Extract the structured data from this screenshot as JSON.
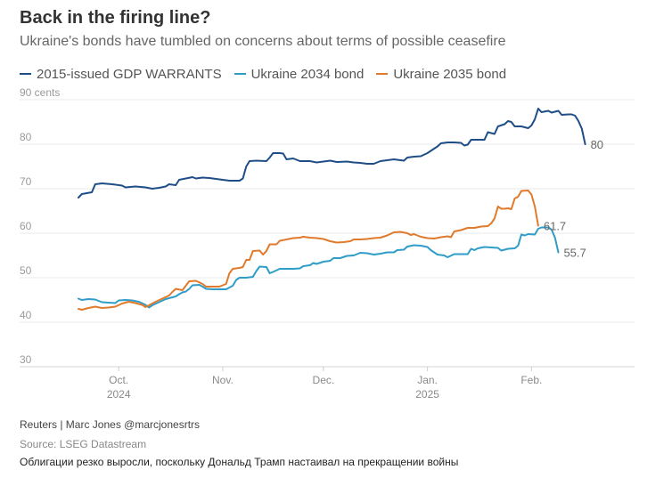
{
  "header": {
    "title": "Back in the firing line?",
    "subtitle": "Ukraine's bonds have tumbled on concerns about terms of possible ceasefire"
  },
  "footer": {
    "credit": "Reuters | Marc Jones @marcjonesrtrs",
    "source": "Source: LSEG Datastream",
    "caption": "Облигации резко выросли, поскольку Дональд Трамп настаивал на прекращении войны"
  },
  "chart_data": {
    "type": "line",
    "title": "Back in the firing line?",
    "subtitle": "Ukraine's bonds have tumbled on concerns about terms of possible ceasefire",
    "xlabel": "",
    "ylabel": "cents",
    "ylim": [
      30,
      90
    ],
    "xlim": [
      0,
      162
    ],
    "grid": true,
    "legend_position": "top",
    "y_ticks": [
      {
        "value": 90,
        "label": "90 cents"
      },
      {
        "value": 80,
        "label": "80"
      },
      {
        "value": 70,
        "label": "70"
      },
      {
        "value": 60,
        "label": "60"
      },
      {
        "value": 50,
        "label": "50"
      },
      {
        "value": 40,
        "label": "40"
      },
      {
        "value": 30,
        "label": "30"
      }
    ],
    "x_ticks": [
      {
        "value": 12,
        "label": "Oct.",
        "year": "2024"
      },
      {
        "value": 43,
        "label": "Nov.",
        "year": ""
      },
      {
        "value": 73,
        "label": "Dec.",
        "year": ""
      },
      {
        "value": 104,
        "label": "Jan.",
        "year": "2025"
      },
      {
        "value": 135,
        "label": "Feb.",
        "year": ""
      }
    ],
    "series": [
      {
        "name": "2015-issued GDP WARRANTS",
        "color": "#1f4e87",
        "end_label": "80",
        "points": [
          [
            0,
            68
          ],
          [
            1,
            68.8
          ],
          [
            4,
            69.2
          ],
          [
            5,
            71
          ],
          [
            7,
            71.2
          ],
          [
            10,
            71
          ],
          [
            13,
            70.7
          ],
          [
            14,
            70.3
          ],
          [
            17,
            70.5
          ],
          [
            20,
            70.3
          ],
          [
            22,
            70
          ],
          [
            24,
            70.2
          ],
          [
            26,
            70.5
          ],
          [
            27,
            71
          ],
          [
            29,
            70.8
          ],
          [
            30,
            72
          ],
          [
            32,
            72.3
          ],
          [
            34,
            72.6
          ],
          [
            35,
            72.3
          ],
          [
            37,
            72.5
          ],
          [
            39,
            72.4
          ],
          [
            41,
            72.2
          ],
          [
            43,
            72
          ],
          [
            45,
            71.8
          ],
          [
            48,
            71.8
          ],
          [
            49,
            72.3
          ],
          [
            50,
            75
          ],
          [
            51,
            76.2
          ],
          [
            53,
            76.3
          ],
          [
            56,
            76.2
          ],
          [
            57,
            77
          ],
          [
            58,
            78
          ],
          [
            60,
            78
          ],
          [
            61,
            77.9
          ],
          [
            62,
            76.6
          ],
          [
            64,
            76.8
          ],
          [
            66,
            76.2
          ],
          [
            69,
            76.2
          ],
          [
            71,
            75.9
          ],
          [
            73,
            76.1
          ],
          [
            75,
            76.3
          ],
          [
            77,
            76
          ],
          [
            80,
            76.1
          ],
          [
            82,
            75.9
          ],
          [
            84,
            75.8
          ],
          [
            86,
            75.6
          ],
          [
            88,
            75.6
          ],
          [
            90,
            76.2
          ],
          [
            92,
            76.4
          ],
          [
            94,
            76.6
          ],
          [
            97,
            76.3
          ],
          [
            98,
            77
          ],
          [
            100,
            77.2
          ],
          [
            102,
            77.3
          ],
          [
            104,
            78
          ],
          [
            106,
            79
          ],
          [
            107,
            79.5
          ],
          [
            108,
            80.2
          ],
          [
            110,
            80.4
          ],
          [
            112,
            80.4
          ],
          [
            114,
            80.3
          ],
          [
            115,
            79.7
          ],
          [
            116,
            79.9
          ],
          [
            117,
            81
          ],
          [
            119,
            81
          ],
          [
            121,
            81
          ],
          [
            122,
            82.7
          ],
          [
            123,
            82.5
          ],
          [
            124,
            82.3
          ],
          [
            125,
            84
          ],
          [
            127,
            84.5
          ],
          [
            128,
            85.2
          ],
          [
            129,
            85
          ],
          [
            130,
            84
          ],
          [
            132,
            84
          ],
          [
            133,
            83.8
          ],
          [
            134,
            83.6
          ],
          [
            135,
            84.2
          ],
          [
            136,
            85.6
          ],
          [
            137,
            88
          ],
          [
            138,
            87.2
          ],
          [
            140,
            87.5
          ],
          [
            141,
            87.1
          ],
          [
            142,
            87.3
          ],
          [
            143,
            87.5
          ],
          [
            144,
            86.6
          ],
          [
            146,
            86.7
          ],
          [
            147,
            86.7
          ],
          [
            148,
            86.4
          ],
          [
            149,
            85.2
          ],
          [
            150,
            83.5
          ],
          [
            151,
            80
          ]
        ]
      },
      {
        "name": "Ukraine 2034 bond",
        "color": "#2f9dc7",
        "end_label": "55.7",
        "points": [
          [
            0,
            45.3
          ],
          [
            1,
            45
          ],
          [
            3,
            45.2
          ],
          [
            5,
            45.1
          ],
          [
            7,
            44.5
          ],
          [
            9,
            44.4
          ],
          [
            11,
            44.3
          ],
          [
            12,
            44.9
          ],
          [
            14,
            45
          ],
          [
            16,
            44.9
          ],
          [
            18,
            44.6
          ],
          [
            20,
            43.9
          ],
          [
            21,
            43.3
          ],
          [
            22,
            43.8
          ],
          [
            24,
            44.5
          ],
          [
            26,
            45.2
          ],
          [
            27,
            45.4
          ],
          [
            29,
            45.8
          ],
          [
            30,
            46.3
          ],
          [
            31,
            46.7
          ],
          [
            32,
            46.9
          ],
          [
            33,
            47.5
          ],
          [
            34,
            48.3
          ],
          [
            36,
            48.4
          ],
          [
            37,
            48
          ],
          [
            38,
            47.5
          ],
          [
            40,
            47.4
          ],
          [
            42,
            47.4
          ],
          [
            44,
            47.4
          ],
          [
            46,
            48.2
          ],
          [
            47,
            49.5
          ],
          [
            48,
            50
          ],
          [
            50,
            50
          ],
          [
            52,
            50.2
          ],
          [
            53,
            51.5
          ],
          [
            54,
            52.5
          ],
          [
            56,
            52.4
          ],
          [
            57,
            51
          ],
          [
            58,
            51.3
          ],
          [
            60,
            52
          ],
          [
            62,
            52
          ],
          [
            64,
            52
          ],
          [
            66,
            52.1
          ],
          [
            67,
            52.6
          ],
          [
            69,
            52.8
          ],
          [
            70,
            53.3
          ],
          [
            71,
            53.1
          ],
          [
            73,
            53.6
          ],
          [
            75,
            53.8
          ],
          [
            76,
            54.4
          ],
          [
            78,
            54.4
          ],
          [
            80,
            54.9
          ],
          [
            82,
            55
          ],
          [
            84,
            55.6
          ],
          [
            86,
            55.5
          ],
          [
            88,
            55.2
          ],
          [
            90,
            55.4
          ],
          [
            92,
            55.7
          ],
          [
            94,
            55.7
          ],
          [
            95,
            56.2
          ],
          [
            97,
            56.3
          ],
          [
            98,
            57
          ],
          [
            100,
            57.3
          ],
          [
            102,
            57.2
          ],
          [
            104,
            56.9
          ],
          [
            105,
            56.2
          ],
          [
            106,
            55.7
          ],
          [
            107,
            55.2
          ],
          [
            109,
            55
          ],
          [
            110,
            54.6
          ],
          [
            112,
            55.3
          ],
          [
            114,
            55.3
          ],
          [
            116,
            55.3
          ],
          [
            117,
            56.5
          ],
          [
            118,
            56.2
          ],
          [
            119,
            56.6
          ],
          [
            121,
            56.9
          ],
          [
            123,
            56.8
          ],
          [
            125,
            56.7
          ],
          [
            126,
            56.1
          ],
          [
            128,
            56.5
          ],
          [
            130,
            56.6
          ],
          [
            131,
            57.2
          ],
          [
            132,
            59.7
          ],
          [
            133,
            59.5
          ],
          [
            134,
            59.8
          ],
          [
            136,
            59.7
          ],
          [
            137,
            61
          ],
          [
            138,
            61.3
          ],
          [
            140,
            61.3
          ],
          [
            141,
            60.8
          ],
          [
            142,
            59
          ],
          [
            143,
            55.7
          ]
        ]
      },
      {
        "name": "Ukraine 2035 bond",
        "color": "#e07a2c",
        "end_label": "61.7",
        "points": [
          [
            0,
            43
          ],
          [
            1,
            42.8
          ],
          [
            3,
            43.2
          ],
          [
            5,
            43.5
          ],
          [
            7,
            43.2
          ],
          [
            9,
            43.3
          ],
          [
            11,
            43.5
          ],
          [
            13,
            44.2
          ],
          [
            15,
            44.6
          ],
          [
            17,
            44.3
          ],
          [
            19,
            43.9
          ],
          [
            20,
            43.4
          ],
          [
            21,
            43.8
          ],
          [
            23,
            44.6
          ],
          [
            25,
            45.3
          ],
          [
            27,
            46
          ],
          [
            28,
            46.8
          ],
          [
            29,
            47.5
          ],
          [
            31,
            47.2
          ],
          [
            32,
            48.2
          ],
          [
            33,
            49.2
          ],
          [
            35,
            49.3
          ],
          [
            37,
            48.6
          ],
          [
            38,
            48
          ],
          [
            40,
            48
          ],
          [
            42,
            48
          ],
          [
            44,
            48.6
          ],
          [
            45,
            51
          ],
          [
            46,
            52
          ],
          [
            48,
            52.2
          ],
          [
            49,
            52.4
          ],
          [
            50,
            54
          ],
          [
            51,
            54
          ],
          [
            52,
            56
          ],
          [
            54,
            56.1
          ],
          [
            55,
            55.2
          ],
          [
            56,
            56
          ],
          [
            57,
            57.5
          ],
          [
            59,
            57.5
          ],
          [
            60,
            58.3
          ],
          [
            62,
            58.6
          ],
          [
            64,
            58.9
          ],
          [
            66,
            59
          ],
          [
            67,
            59.2
          ],
          [
            69,
            59
          ],
          [
            71,
            58.9
          ],
          [
            73,
            58.7
          ],
          [
            75,
            58.2
          ],
          [
            77,
            57.9
          ],
          [
            79,
            58
          ],
          [
            81,
            58.2
          ],
          [
            82,
            58.6
          ],
          [
            84,
            58.6
          ],
          [
            86,
            58.7
          ],
          [
            88,
            58.9
          ],
          [
            90,
            59
          ],
          [
            92,
            59.5
          ],
          [
            94,
            60.2
          ],
          [
            96,
            60.3
          ],
          [
            98,
            60
          ],
          [
            99,
            59.6
          ],
          [
            100,
            59.8
          ],
          [
            102,
            59.2
          ],
          [
            104,
            58.9
          ],
          [
            106,
            58.8
          ],
          [
            108,
            59.1
          ],
          [
            110,
            59.3
          ],
          [
            111,
            59.1
          ],
          [
            112,
            60.4
          ],
          [
            114,
            60.7
          ],
          [
            116,
            61.2
          ],
          [
            118,
            61.2
          ],
          [
            120,
            61.5
          ],
          [
            122,
            61.6
          ],
          [
            123,
            62.2
          ],
          [
            124,
            63.3
          ],
          [
            125,
            66
          ],
          [
            126,
            65.5
          ],
          [
            127,
            65.5
          ],
          [
            128,
            65.6
          ],
          [
            129,
            65.4
          ],
          [
            130,
            67.8
          ],
          [
            131,
            68.2
          ],
          [
            132,
            69.5
          ],
          [
            134,
            69.6
          ],
          [
            135,
            68.7
          ],
          [
            136,
            66
          ],
          [
            137,
            61.7
          ]
        ]
      }
    ]
  }
}
